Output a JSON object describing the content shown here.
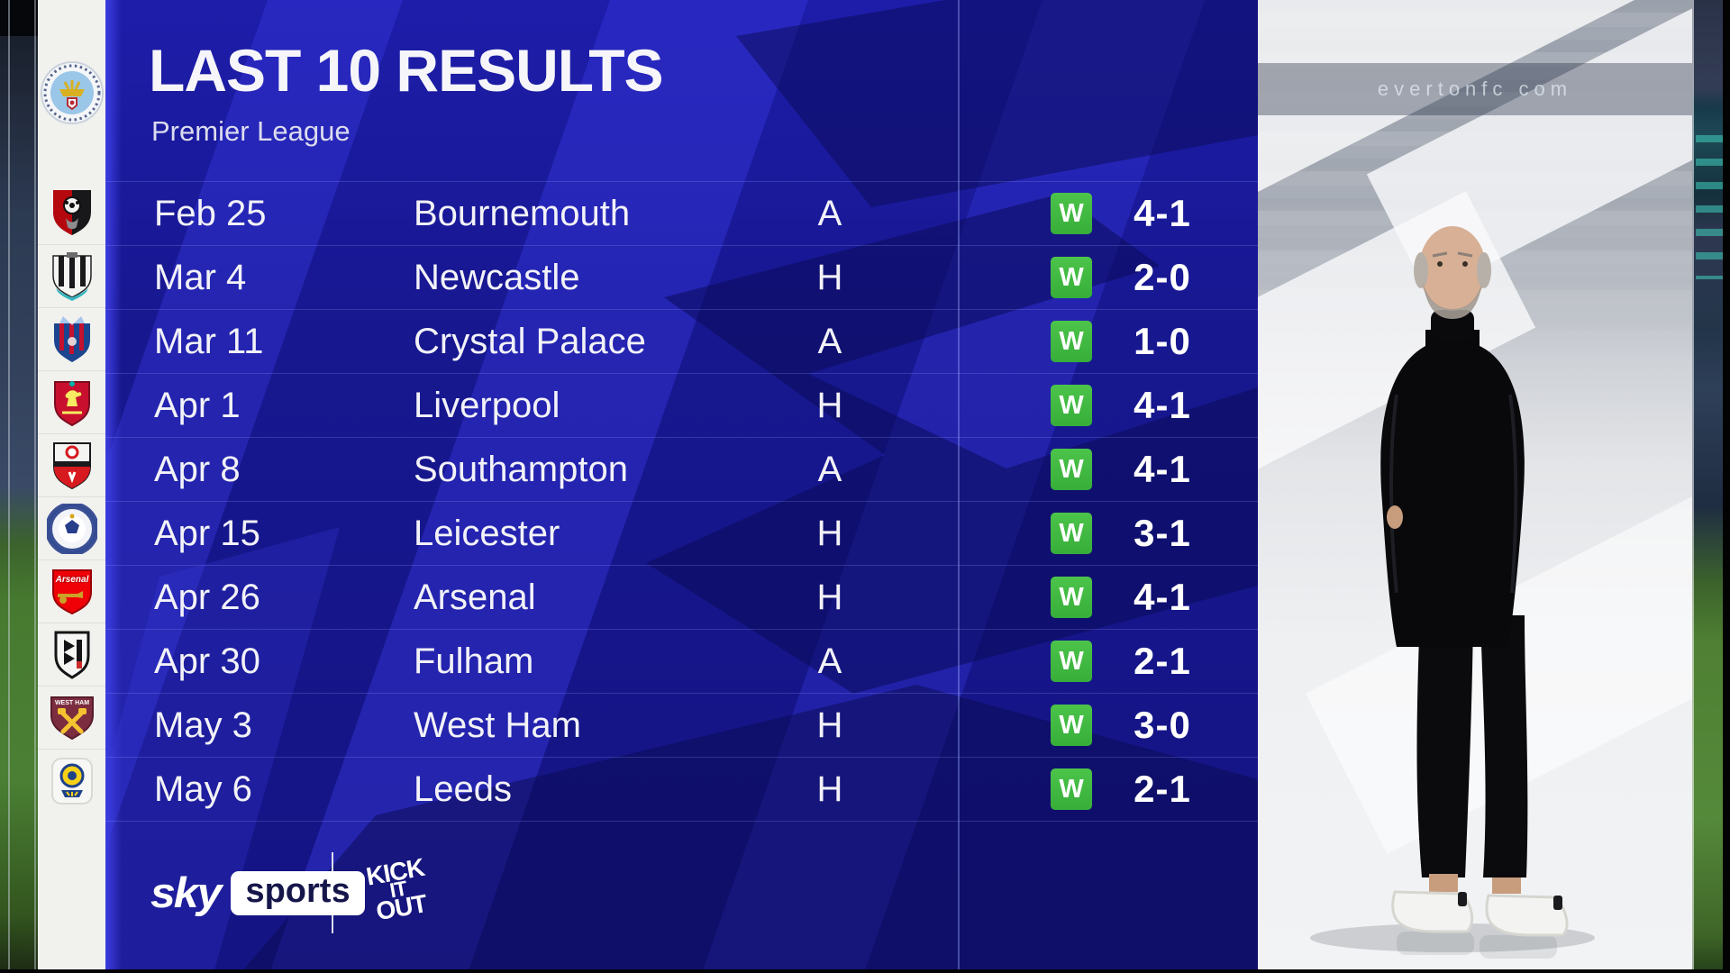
{
  "header": {
    "title": "LAST 10 RESULTS",
    "subtitle": "Premier League"
  },
  "club": {
    "name": "Manchester City"
  },
  "results": [
    {
      "date": "Feb 25",
      "opponent": "Bournemouth",
      "venue": "A",
      "outcome": "W",
      "score": "4-1",
      "badge": "bournemouth"
    },
    {
      "date": "Mar 4",
      "opponent": "Newcastle",
      "venue": "H",
      "outcome": "W",
      "score": "2-0",
      "badge": "newcastle"
    },
    {
      "date": "Mar 11",
      "opponent": "Crystal Palace",
      "venue": "A",
      "outcome": "W",
      "score": "1-0",
      "badge": "crystal-palace"
    },
    {
      "date": "Apr 1",
      "opponent": "Liverpool",
      "venue": "H",
      "outcome": "W",
      "score": "4-1",
      "badge": "liverpool"
    },
    {
      "date": "Apr 8",
      "opponent": "Southampton",
      "venue": "A",
      "outcome": "W",
      "score": "4-1",
      "badge": "southampton"
    },
    {
      "date": "Apr 15",
      "opponent": "Leicester",
      "venue": "H",
      "outcome": "W",
      "score": "3-1",
      "badge": "leicester"
    },
    {
      "date": "Apr 26",
      "opponent": "Arsenal",
      "venue": "H",
      "outcome": "W",
      "score": "4-1",
      "badge": "arsenal"
    },
    {
      "date": "Apr 30",
      "opponent": "Fulham",
      "venue": "A",
      "outcome": "W",
      "score": "2-1",
      "badge": "fulham"
    },
    {
      "date": "May 3",
      "opponent": "West Ham",
      "venue": "H",
      "outcome": "W",
      "score": "3-0",
      "badge": "west-ham"
    },
    {
      "date": "May 6",
      "opponent": "Leeds",
      "venue": "H",
      "outcome": "W",
      "score": "2-1",
      "badge": "leeds"
    }
  ],
  "footer": {
    "sky_word": "sky",
    "sports_word": "sports",
    "kick_it_out_lines": [
      "KICK",
      "IT",
      "OUT"
    ]
  },
  "background": {
    "stadium_led_text": "evertonfc com"
  },
  "colors": {
    "panel_blue": "#17178f",
    "stripe_blue": "#3a3ae2",
    "chevron_dark": "#0d0d64",
    "win_green": "#3db83d",
    "text_white": "#f2f2f8",
    "strip_white": "#f1f1ee"
  },
  "chart_data": {
    "type": "table",
    "title": "LAST 10 RESULTS",
    "subtitle": "Premier League",
    "columns": [
      "date",
      "opponent",
      "venue",
      "outcome",
      "score"
    ],
    "rows": [
      [
        "Feb 25",
        "Bournemouth",
        "A",
        "W",
        "4-1"
      ],
      [
        "Mar 4",
        "Newcastle",
        "H",
        "W",
        "2-0"
      ],
      [
        "Mar 11",
        "Crystal Palace",
        "A",
        "W",
        "1-0"
      ],
      [
        "Apr 1",
        "Liverpool",
        "H",
        "W",
        "4-1"
      ],
      [
        "Apr 8",
        "Southampton",
        "A",
        "W",
        "4-1"
      ],
      [
        "Apr 15",
        "Leicester",
        "H",
        "W",
        "3-1"
      ],
      [
        "Apr 26",
        "Arsenal",
        "H",
        "W",
        "4-1"
      ],
      [
        "Apr 30",
        "Fulham",
        "A",
        "W",
        "2-1"
      ],
      [
        "May 3",
        "West Ham",
        "H",
        "W",
        "3-0"
      ],
      [
        "May 6",
        "Leeds",
        "H",
        "W",
        "2-1"
      ]
    ]
  }
}
